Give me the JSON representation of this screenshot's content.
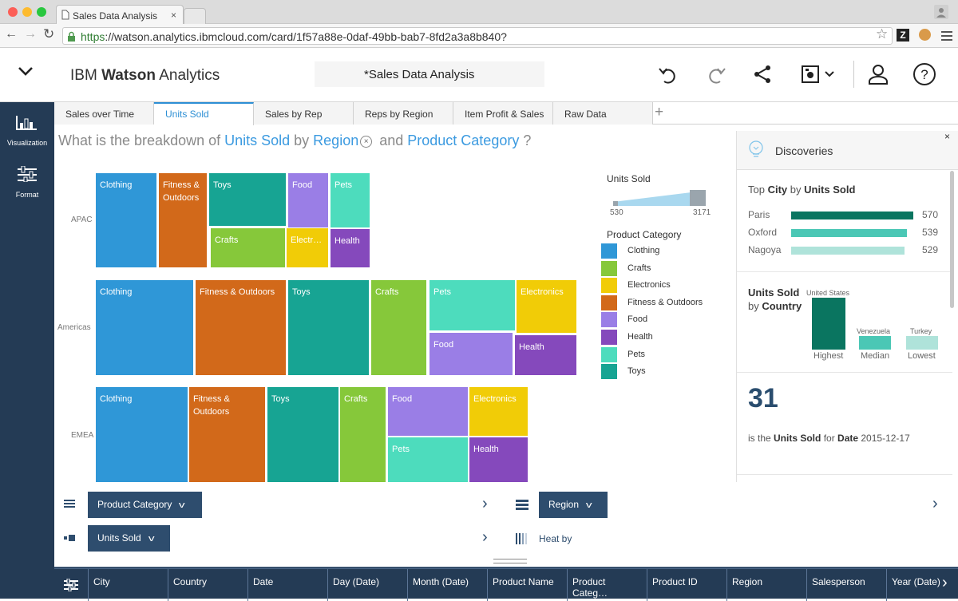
{
  "browser": {
    "tab_title": "Sales Data Analysis",
    "tab_close": "×",
    "url_https": "https",
    "url_rest": "://watson.analytics.ibmcloud.com/card/1f57a88e-0daf-49bb-bab7-8fd2a3a8b840?"
  },
  "header": {
    "brand_regular_1": "IBM ",
    "brand_bold": "Watson",
    "brand_regular_2": " Analytics",
    "doc_title": "*Sales Data Analysis"
  },
  "rail": {
    "visualization_label": "Visualization",
    "format_label": "Format"
  },
  "tabs": [
    {
      "label": "Sales over Time"
    },
    {
      "label": "Units Sold"
    },
    {
      "label": "Sales by Rep"
    },
    {
      "label": "Reps by Region"
    },
    {
      "label": "Item Profit & Sales"
    },
    {
      "label": "Raw Data"
    }
  ],
  "tab_add": "+",
  "question": {
    "prefix": "What is the breakdown of ",
    "measure": "Units Sold",
    "by": " by ",
    "dim1": "Region",
    "and": " and ",
    "dim2": "Product Category",
    "suffix": " ?",
    "clear_glyph": "×"
  },
  "treemap": {
    "regions": [
      "APAC",
      "Americas",
      "EMEA"
    ],
    "colors": {
      "Clothing": "#2f97d7",
      "Crafts": "#86c83a",
      "Electronics": "#f1cc07",
      "Fitness & Outdoors": "#d2691a",
      "Food": "#9a7ee6",
      "Health": "#8549bc",
      "Pets": "#4ddcbd",
      "Toys": "#17a493"
    },
    "cells": [
      {
        "region": "APAC",
        "category": "Clothing",
        "label": "Clothing"
      },
      {
        "region": "APAC",
        "category": "Fitness & Outdoors",
        "label": "Fitness & Outdoors"
      },
      {
        "region": "APAC",
        "category": "Toys",
        "label": "Toys"
      },
      {
        "region": "APAC",
        "category": "Food",
        "label": "Food"
      },
      {
        "region": "APAC",
        "category": "Pets",
        "label": "Pets"
      },
      {
        "region": "APAC",
        "category": "Crafts",
        "label": "Crafts"
      },
      {
        "region": "APAC",
        "category": "Electronics",
        "label": "Electr…"
      },
      {
        "region": "APAC",
        "category": "Health",
        "label": "Health"
      },
      {
        "region": "Americas",
        "category": "Clothing",
        "label": "Clothing"
      },
      {
        "region": "Americas",
        "category": "Fitness & Outdoors",
        "label": "Fitness & Outdoors"
      },
      {
        "region": "Americas",
        "category": "Toys",
        "label": "Toys"
      },
      {
        "region": "Americas",
        "category": "Crafts",
        "label": "Crafts"
      },
      {
        "region": "Americas",
        "category": "Pets",
        "label": "Pets"
      },
      {
        "region": "Americas",
        "category": "Electronics",
        "label": "Electronics"
      },
      {
        "region": "Americas",
        "category": "Food",
        "label": "Food"
      },
      {
        "region": "Americas",
        "category": "Health",
        "label": "Health"
      },
      {
        "region": "EMEA",
        "category": "Clothing",
        "label": "Clothing"
      },
      {
        "region": "EMEA",
        "category": "Fitness & Outdoors",
        "label": "Fitness & Outdoors"
      },
      {
        "region": "EMEA",
        "category": "Toys",
        "label": "Toys"
      },
      {
        "region": "EMEA",
        "category": "Crafts",
        "label": "Crafts"
      },
      {
        "region": "EMEA",
        "category": "Food",
        "label": "Food"
      },
      {
        "region": "EMEA",
        "category": "Electronics",
        "label": "Electronics"
      },
      {
        "region": "EMEA",
        "category": "Pets",
        "label": "Pets"
      },
      {
        "region": "EMEA",
        "category": "Health",
        "label": "Health"
      }
    ]
  },
  "legend": {
    "size_title": "Units Sold",
    "min": "530",
    "max": "3171",
    "category_title": "Product Category",
    "items": [
      {
        "label": "Clothing",
        "color": "#2f97d7"
      },
      {
        "label": "Crafts",
        "color": "#86c83a"
      },
      {
        "label": "Electronics",
        "color": "#f1cc07"
      },
      {
        "label": "Fitness & Outdoors",
        "color": "#d2691a"
      },
      {
        "label": "Food",
        "color": "#9a7ee6"
      },
      {
        "label": "Health",
        "color": "#8549bc"
      },
      {
        "label": "Pets",
        "color": "#4ddcbd"
      },
      {
        "label": "Toys",
        "color": "#17a493"
      }
    ]
  },
  "discoveries": {
    "title": "Discoveries",
    "close": "×",
    "top_city": {
      "h_prefix": "Top ",
      "h_dim": "City",
      "h_by": " by ",
      "h_measure": "Units Sold",
      "max_value": 570,
      "rows": [
        {
          "name": "Paris",
          "value": 570,
          "color": "#0a7560"
        },
        {
          "name": "Oxford",
          "value": 539,
          "color": "#4bc7b5"
        },
        {
          "name": "Nagoya",
          "value": 529,
          "color": "#afe3da"
        }
      ]
    },
    "by_country": {
      "h_measure": "Units Sold",
      "h_by": "by ",
      "h_dim": "Country",
      "highest_country": "United States",
      "median_country": "Venezuela",
      "lowest_country": "Turkey",
      "highest_caption": "Highest",
      "median_caption": "Median",
      "lowest_caption": "Lowest"
    },
    "stat": {
      "value": "31",
      "desc_pre": "is the ",
      "desc_measure": "Units Sold",
      "desc_for": " for ",
      "desc_dim": "Date",
      "desc_value": " 2015-12-17"
    }
  },
  "controls": {
    "color_by": "Product Category",
    "size_by": "Units Sold",
    "group_by": "Region",
    "heat_by": "Heat by"
  },
  "fields": [
    "City",
    "Country",
    "Date",
    "Day (Date)",
    "Month (Date)",
    "Product Name",
    "Product Categ…",
    "Product ID",
    "Region",
    "Salesperson",
    "Year (Date)"
  ]
}
